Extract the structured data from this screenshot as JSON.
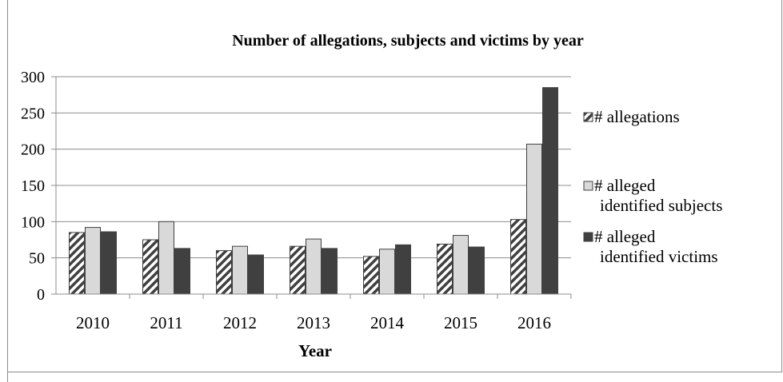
{
  "chart_data": {
    "type": "bar",
    "title": "Number of allegations, subjects and victims by year",
    "xlabel": "Year",
    "ylabel": "",
    "ylim": [
      0,
      300
    ],
    "yticks": [
      0,
      50,
      100,
      150,
      200,
      250,
      300
    ],
    "grid": true,
    "legend_position": "right",
    "categories": [
      "2010",
      "2011",
      "2012",
      "2013",
      "2014",
      "2015",
      "2016"
    ],
    "series": [
      {
        "name": "# allegations",
        "values": [
          85,
          75,
          60,
          66,
          52,
          69,
          103
        ],
        "fill": "hatched",
        "color": "#404040"
      },
      {
        "name": "# alleged identified subjects",
        "values": [
          92,
          100,
          66,
          76,
          62,
          81,
          207
        ],
        "fill": "solid",
        "color": "#d9d9d9"
      },
      {
        "name": "# alleged identified victims",
        "values": [
          86,
          63,
          54,
          63,
          68,
          65,
          285
        ],
        "fill": "solid",
        "color": "#404040"
      }
    ]
  }
}
